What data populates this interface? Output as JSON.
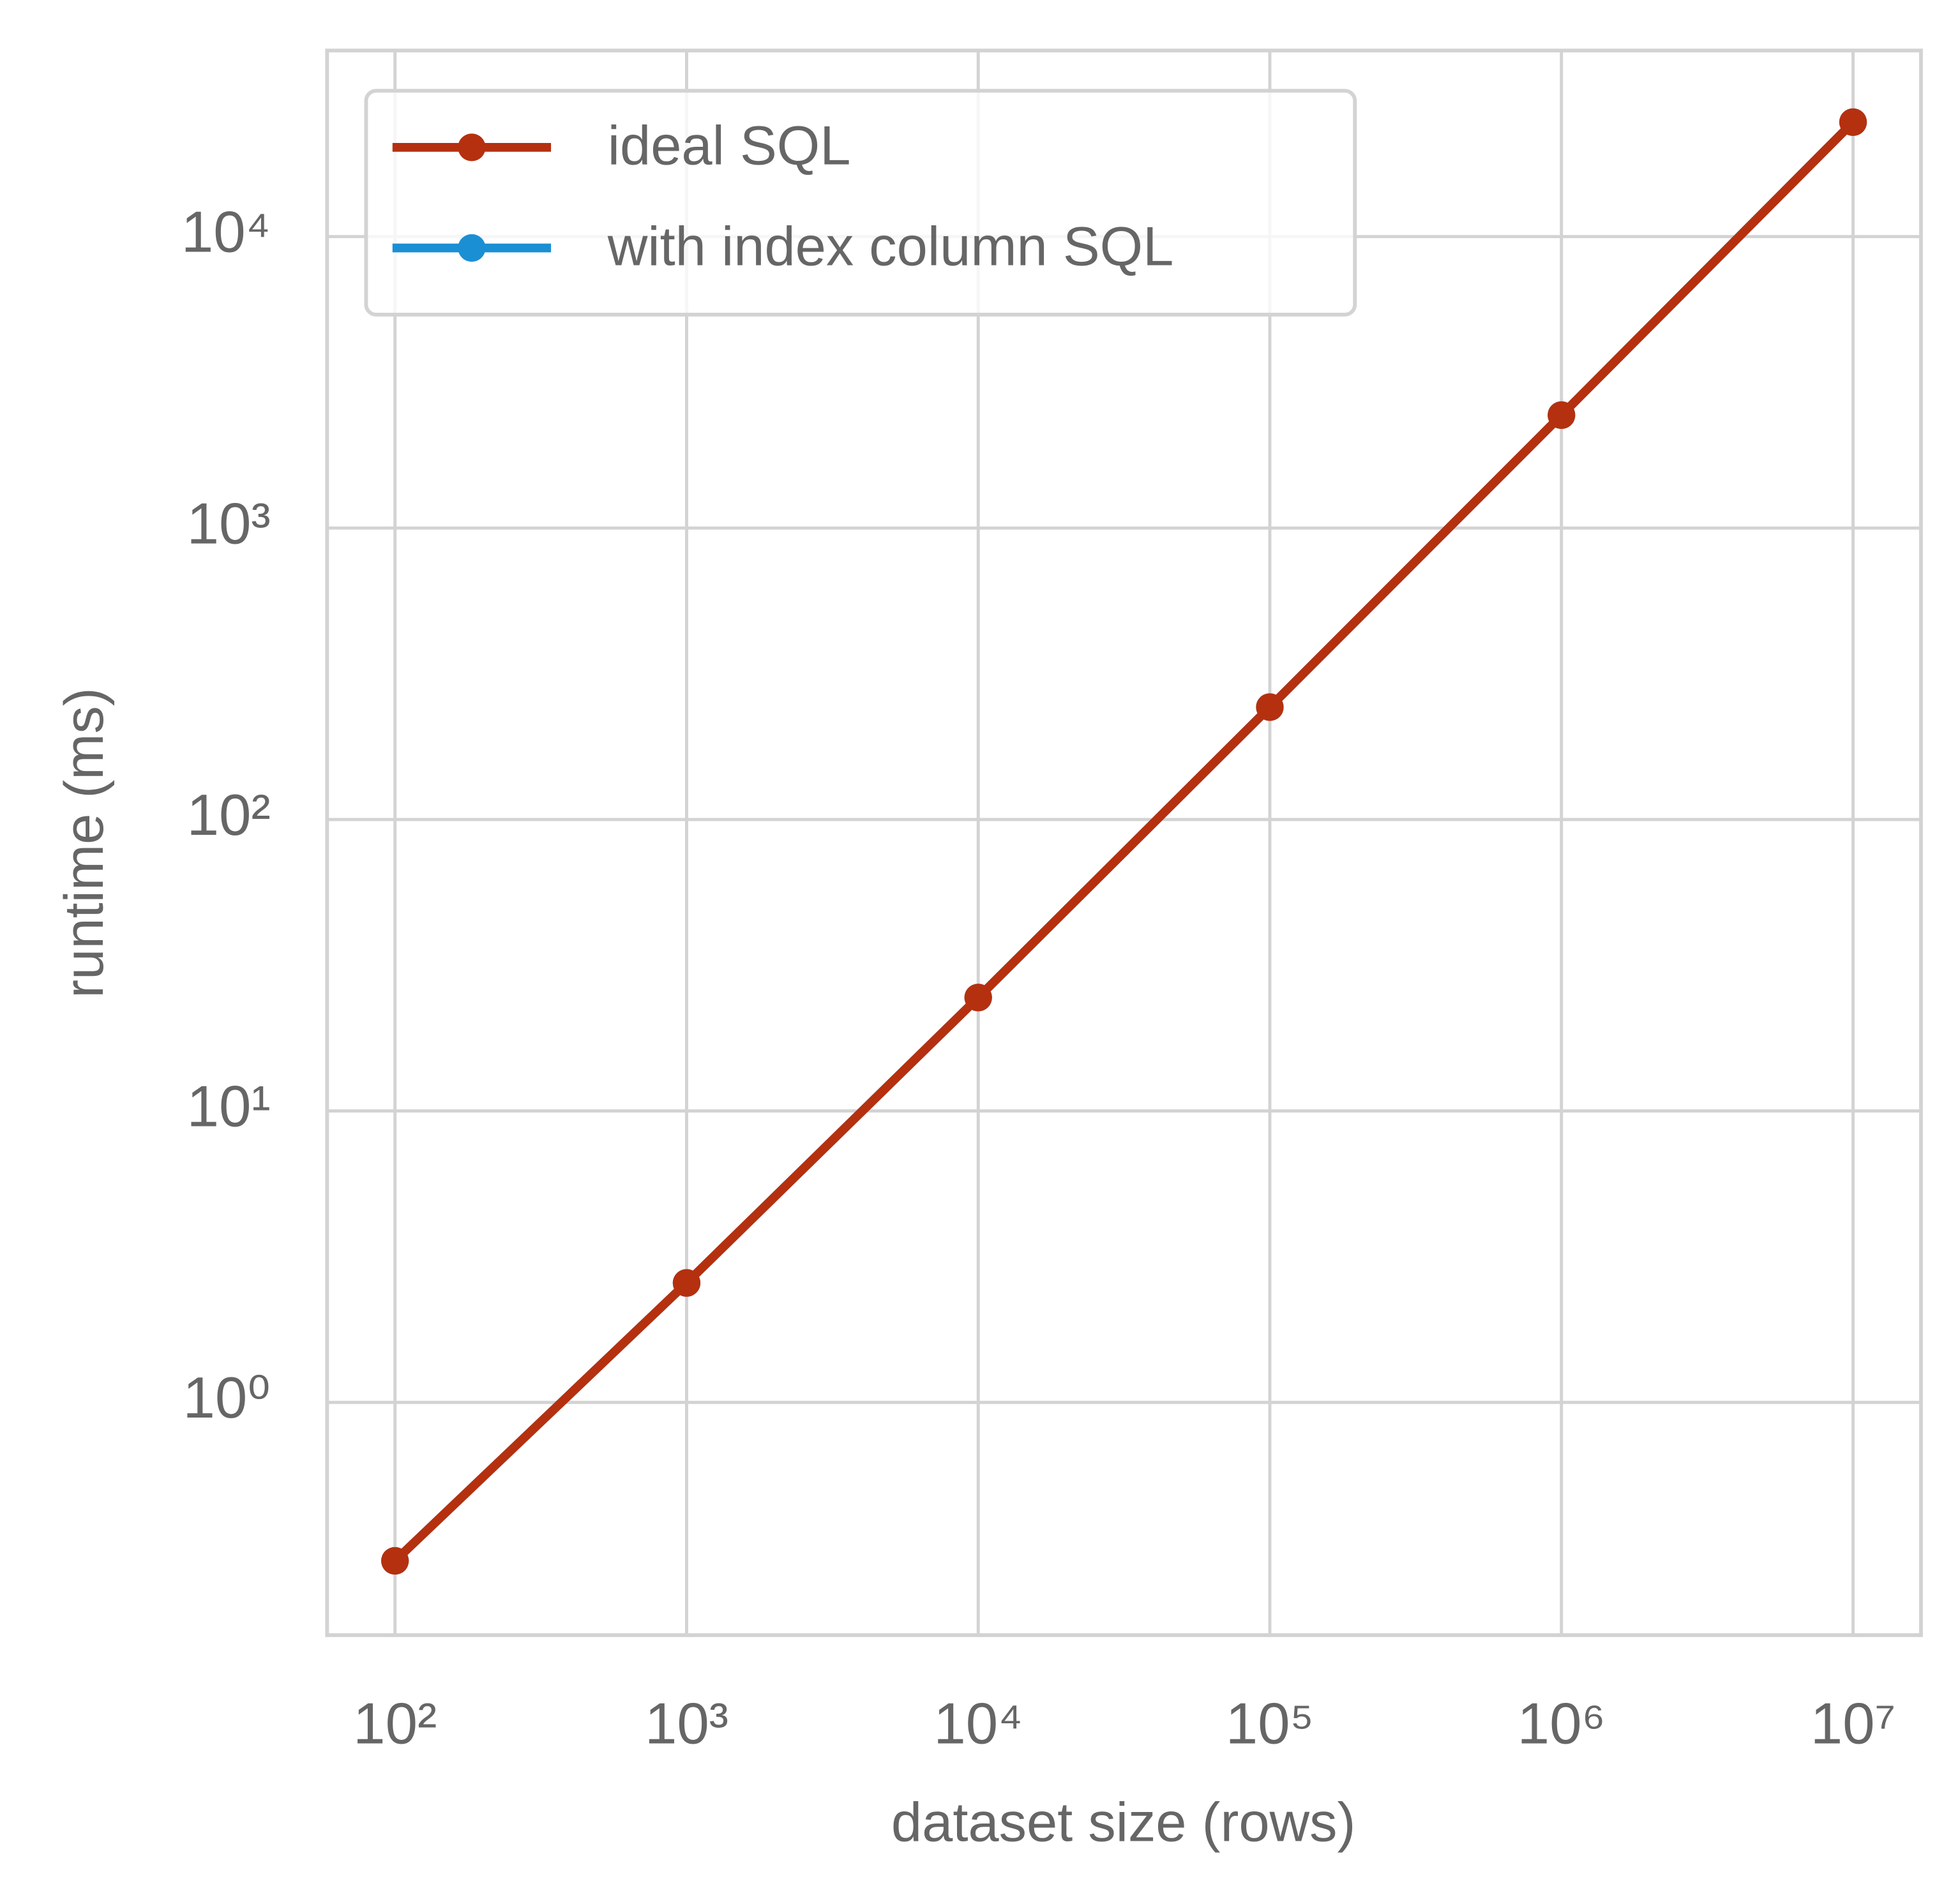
{
  "chart_data": {
    "type": "line",
    "x_label": "dataset size (rows)",
    "y_label": "runtime (ms)",
    "x": [
      100,
      1000,
      10000,
      100000,
      1000000,
      10000000
    ],
    "series": [
      {
        "name": "ideal SQL",
        "color": "#b5300f",
        "values": [
          0.286,
          2.57,
          24.5,
          243,
          2440,
          24700
        ]
      },
      {
        "name": "with index column SQL",
        "color": "#1b8fd4",
        "values": [
          0.286,
          2.57,
          24.5,
          243,
          2440,
          24700
        ]
      }
    ],
    "xscale": "log",
    "yscale": "log",
    "xlim": [
      58.5,
      17100000
    ],
    "ylim": [
      0.159,
      43500
    ],
    "xticks": [
      {
        "value": 100,
        "label": "10²"
      },
      {
        "value": 1000,
        "label": "10³"
      },
      {
        "value": 10000,
        "label": "10⁴"
      },
      {
        "value": 100000,
        "label": "10⁵"
      },
      {
        "value": 1000000,
        "label": "10⁶"
      },
      {
        "value": 10000000,
        "label": "10⁷"
      }
    ],
    "yticks": [
      {
        "value": 1,
        "label": "10⁰"
      },
      {
        "value": 10,
        "label": "10¹"
      },
      {
        "value": 100,
        "label": "10²"
      },
      {
        "value": 1000,
        "label": "10³"
      },
      {
        "value": 10000,
        "label": "10⁴"
      }
    ],
    "grid": true,
    "legend_position": "upper left"
  }
}
